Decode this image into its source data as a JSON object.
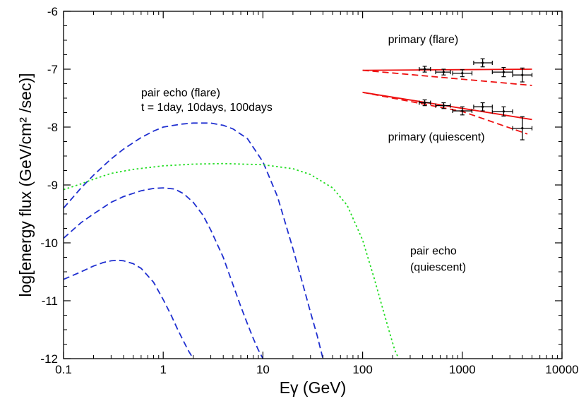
{
  "chart_data": {
    "type": "line",
    "title": "",
    "xlabel": "Eγ (GeV)",
    "ylabel": "log[energy flux (GeV/cm² /sec)]",
    "xscale": "log",
    "xlim": [
      0.1,
      10000
    ],
    "ylim": [
      -12,
      -6
    ],
    "grid": false,
    "x_ticks": [
      0.1,
      1,
      10,
      100,
      1000,
      10000
    ],
    "x_tick_labels": [
      "0.1",
      "1",
      "10",
      "100",
      "1000",
      "10000"
    ],
    "y_ticks": [
      -12,
      -11,
      -10,
      -9,
      -8,
      -7,
      -6
    ],
    "y_tick_labels": [
      "-12",
      "-11",
      "-10",
      "-9",
      "-8",
      "-7",
      "-6"
    ],
    "colors": {
      "pair_echo_flare": "#1f2fd0",
      "pair_echo_quiescent": "#22dd22",
      "primary_model": "#ee1111",
      "data_points": "#000000"
    },
    "annotations": [
      {
        "text": "primary (flare)",
        "x": 180,
        "y": -6.55
      },
      {
        "text": "pair echo (flare)",
        "x": 0.6,
        "y": -7.47
      },
      {
        "text": "t = 1day, 10days, 100days",
        "x": 0.6,
        "y": -7.72
      },
      {
        "text": "primary (quiescent)",
        "x": 180,
        "y": -8.23
      },
      {
        "text": "pair echo",
        "x": 300,
        "y": -10.2
      },
      {
        "text": "(quiescent)",
        "x": 300,
        "y": -10.48
      }
    ],
    "series": [
      {
        "style": "dashed",
        "color_key": "pair_echo_flare",
        "x": [
          0.1,
          0.15,
          0.2,
          0.3,
          0.4,
          0.6,
          0.8,
          1,
          1.5,
          2,
          3,
          4,
          5,
          7,
          10,
          14,
          20,
          25,
          30,
          35,
          40
        ],
        "y": [
          -9.4,
          -9.05,
          -8.83,
          -8.55,
          -8.38,
          -8.18,
          -8.07,
          -8.0,
          -7.95,
          -7.93,
          -7.93,
          -7.97,
          -8.03,
          -8.2,
          -8.6,
          -9.2,
          -10.1,
          -10.7,
          -11.2,
          -11.6,
          -12.0
        ]
      },
      {
        "style": "dashed",
        "color_key": "pair_echo_flare",
        "x": [
          0.1,
          0.15,
          0.2,
          0.3,
          0.4,
          0.6,
          0.8,
          1,
          1.3,
          1.6,
          2,
          2.5,
          3,
          4,
          5,
          6,
          7,
          8,
          9,
          10
        ],
        "y": [
          -9.92,
          -9.65,
          -9.5,
          -9.3,
          -9.2,
          -9.1,
          -9.06,
          -9.05,
          -9.07,
          -9.15,
          -9.3,
          -9.52,
          -9.78,
          -10.25,
          -10.72,
          -11.1,
          -11.4,
          -11.65,
          -11.85,
          -12.0
        ]
      },
      {
        "style": "dashed",
        "color_key": "pair_echo_flare",
        "x": [
          0.1,
          0.15,
          0.2,
          0.25,
          0.3,
          0.35,
          0.4,
          0.5,
          0.6,
          0.8,
          1,
          1.2,
          1.4,
          1.6,
          1.8,
          2
        ],
        "y": [
          -10.63,
          -10.5,
          -10.4,
          -10.34,
          -10.31,
          -10.3,
          -10.31,
          -10.36,
          -10.44,
          -10.68,
          -10.98,
          -11.25,
          -11.5,
          -11.7,
          -11.87,
          -12.0
        ]
      },
      {
        "style": "dotted",
        "color_key": "pair_echo_quiescent",
        "x": [
          0.1,
          0.15,
          0.2,
          0.3,
          0.5,
          1,
          2,
          4,
          10,
          20,
          30,
          50,
          70,
          100,
          130,
          160,
          190,
          210,
          230
        ],
        "y": [
          -9.08,
          -8.98,
          -8.9,
          -8.8,
          -8.73,
          -8.67,
          -8.64,
          -8.63,
          -8.65,
          -8.72,
          -8.82,
          -9.05,
          -9.35,
          -9.95,
          -10.6,
          -11.15,
          -11.6,
          -11.85,
          -12.0
        ]
      },
      {
        "style": "solid",
        "color_key": "primary_model",
        "x": [
          100,
          5000
        ],
        "y": [
          -7.02,
          -7.0
        ]
      },
      {
        "style": "dashed",
        "color_key": "primary_model",
        "x": [
          100,
          5000
        ],
        "y": [
          -7.02,
          -7.28
        ]
      },
      {
        "style": "solid",
        "color_key": "primary_model",
        "x": [
          100,
          5000
        ],
        "y": [
          -7.4,
          -7.87
        ]
      },
      {
        "style": "dashed",
        "color_key": "primary_model",
        "x": [
          100,
          1000,
          4500
        ],
        "y": [
          -7.4,
          -7.73,
          -8.12
        ]
      }
    ],
    "points": [
      {
        "x": 420,
        "y": -7.0,
        "xerr": [
          370,
          480
        ],
        "yerr": 0.05
      },
      {
        "x": 650,
        "y": -7.05,
        "xerr": [
          540,
          760
        ],
        "yerr": 0.05
      },
      {
        "x": 1000,
        "y": -7.07,
        "xerr": [
          800,
          1250
        ],
        "yerr": 0.06
      },
      {
        "x": 1600,
        "y": -6.89,
        "xerr": [
          1300,
          2000
        ],
        "yerr": 0.07
      },
      {
        "x": 2600,
        "y": -7.05,
        "xerr": [
          2000,
          3200
        ],
        "yerr": 0.08
      },
      {
        "x": 4000,
        "y": -7.1,
        "xerr": [
          3200,
          5000
        ],
        "yerr": 0.12
      },
      {
        "x": 420,
        "y": -7.58,
        "xerr": [
          370,
          480
        ],
        "yerr": 0.05
      },
      {
        "x": 650,
        "y": -7.63,
        "xerr": [
          540,
          760
        ],
        "yerr": 0.05
      },
      {
        "x": 1000,
        "y": -7.72,
        "xerr": [
          800,
          1250
        ],
        "yerr": 0.07
      },
      {
        "x": 1600,
        "y": -7.65,
        "xerr": [
          1300,
          2000
        ],
        "yerr": 0.07
      },
      {
        "x": 2600,
        "y": -7.73,
        "xerr": [
          2000,
          3200
        ],
        "yerr": 0.08
      },
      {
        "x": 4000,
        "y": -8.02,
        "xerr": [
          3200,
          5000
        ],
        "yerr": 0.2
      }
    ]
  }
}
